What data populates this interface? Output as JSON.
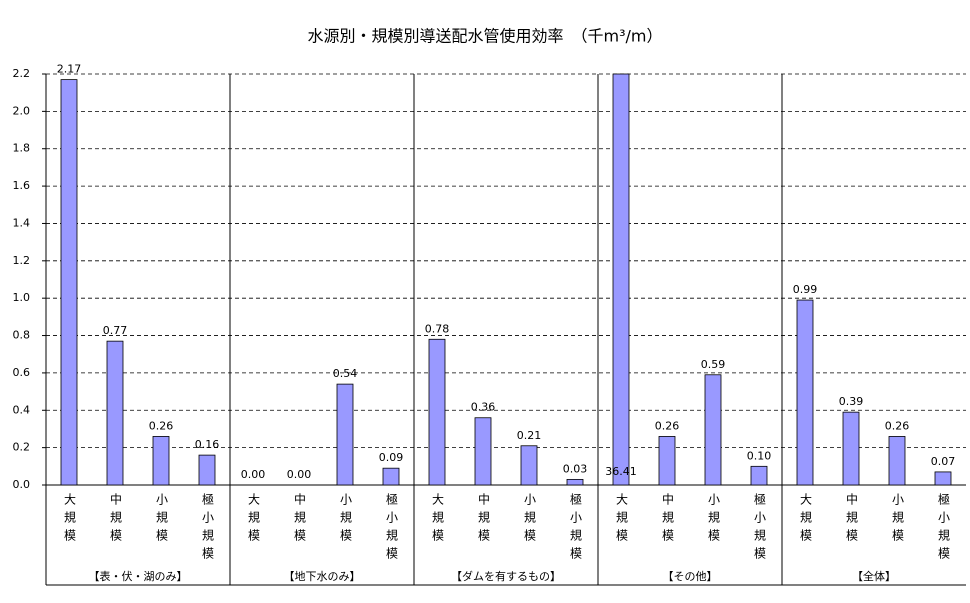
{
  "chart_data": {
    "type": "grouped-bar",
    "title": "水源別・規模別導送配水管使用効率　（千m³/m）",
    "color": "#9999ff",
    "ylim": [
      0,
      2.2
    ],
    "yticks": [
      {
        "value": 0,
        "label": "0.0"
      },
      0.2,
      0.4,
      0.6,
      0.8,
      {
        "value": 1,
        "label": "1.0"
      },
      1.2,
      1.4,
      1.6,
      1.8,
      {
        "value": 2,
        "label": "2.0"
      },
      2.2
    ],
    "grid": true,
    "groups": [
      {
        "name": "【表・伏・湖のみ】",
        "categories": [
          "大規模",
          "中規模",
          "小規模",
          "極小規模"
        ],
        "values": [
          2.17,
          0.77,
          0.26,
          0.16
        ],
        "value_labels": [
          "2.17",
          "0.77",
          "0.26",
          "0.16"
        ]
      },
      {
        "name": "【地下水のみ】",
        "categories": [
          "大規模",
          "中規模",
          "小規模",
          "極小規模"
        ],
        "values": [
          0,
          0,
          0.54,
          0.09
        ],
        "value_labels": [
          "0.00",
          "0.00",
          "0.54",
          "0.09"
        ]
      },
      {
        "name": "【ダムを有するもの】",
        "categories": [
          "大規模",
          "中規模",
          "小規模",
          "極小規模"
        ],
        "values": [
          0.78,
          0.36,
          0.21,
          0.03
        ],
        "value_labels": [
          "0.78",
          "0.36",
          "0.21",
          "0.03"
        ]
      },
      {
        "name": "【その他】",
        "categories": [
          "大規模",
          "中規模",
          "小規模",
          "極小規模"
        ],
        "values": [
          36.41,
          0.26,
          0.59,
          0.1
        ],
        "value_labels": [
          "36.41",
          "0.26",
          "0.59",
          "0.10"
        ]
      },
      {
        "name": "【全体】",
        "categories": [
          "大規模",
          "中規模",
          "小規模",
          "極小規模"
        ],
        "values": [
          0.99,
          0.39,
          0.26,
          0.07
        ],
        "value_labels": [
          "0.99",
          "0.39",
          "0.26",
          "0.07"
        ]
      }
    ]
  }
}
